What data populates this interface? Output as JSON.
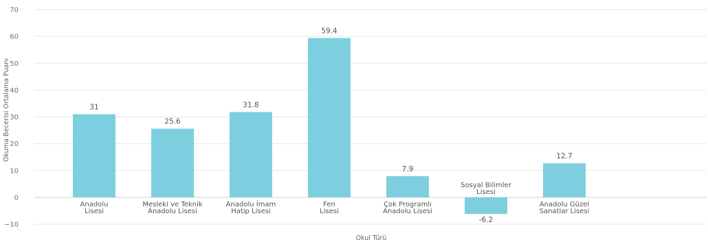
{
  "chart_data": {
    "type": "bar",
    "title": "",
    "xlabel": "Okul Türü",
    "ylabel": "Okuma Becerisi Ortalama Puanı",
    "ylim": [
      -10,
      70
    ],
    "yticks": [
      -10,
      0,
      10,
      20,
      30,
      40,
      50,
      60,
      70
    ],
    "grid": true,
    "legend": "none",
    "bar_color": "#7dcfdf",
    "categories": [
      [
        "Anadolu",
        "Lisesi"
      ],
      [
        "Mesleki ve Teknik",
        "Anadolu Lisesi"
      ],
      [
        "Anadolu İmam",
        "Hatip Lisesi"
      ],
      [
        "Fen",
        "Lisesi"
      ],
      [
        "Çok Programlı",
        "Anadolu Lisesi"
      ],
      [
        "Sosyal Bilimler",
        "Lisesi"
      ],
      [
        "Anadolu Güzel",
        "Sanatlar Lisesi"
      ]
    ],
    "values": [
      31,
      25.6,
      31.8,
      59.4,
      7.9,
      -6.2,
      12.7
    ],
    "value_labels": [
      "31",
      "25.6",
      "31.8",
      "59.4",
      "7.9",
      "-6.2",
      "12.7"
    ]
  }
}
